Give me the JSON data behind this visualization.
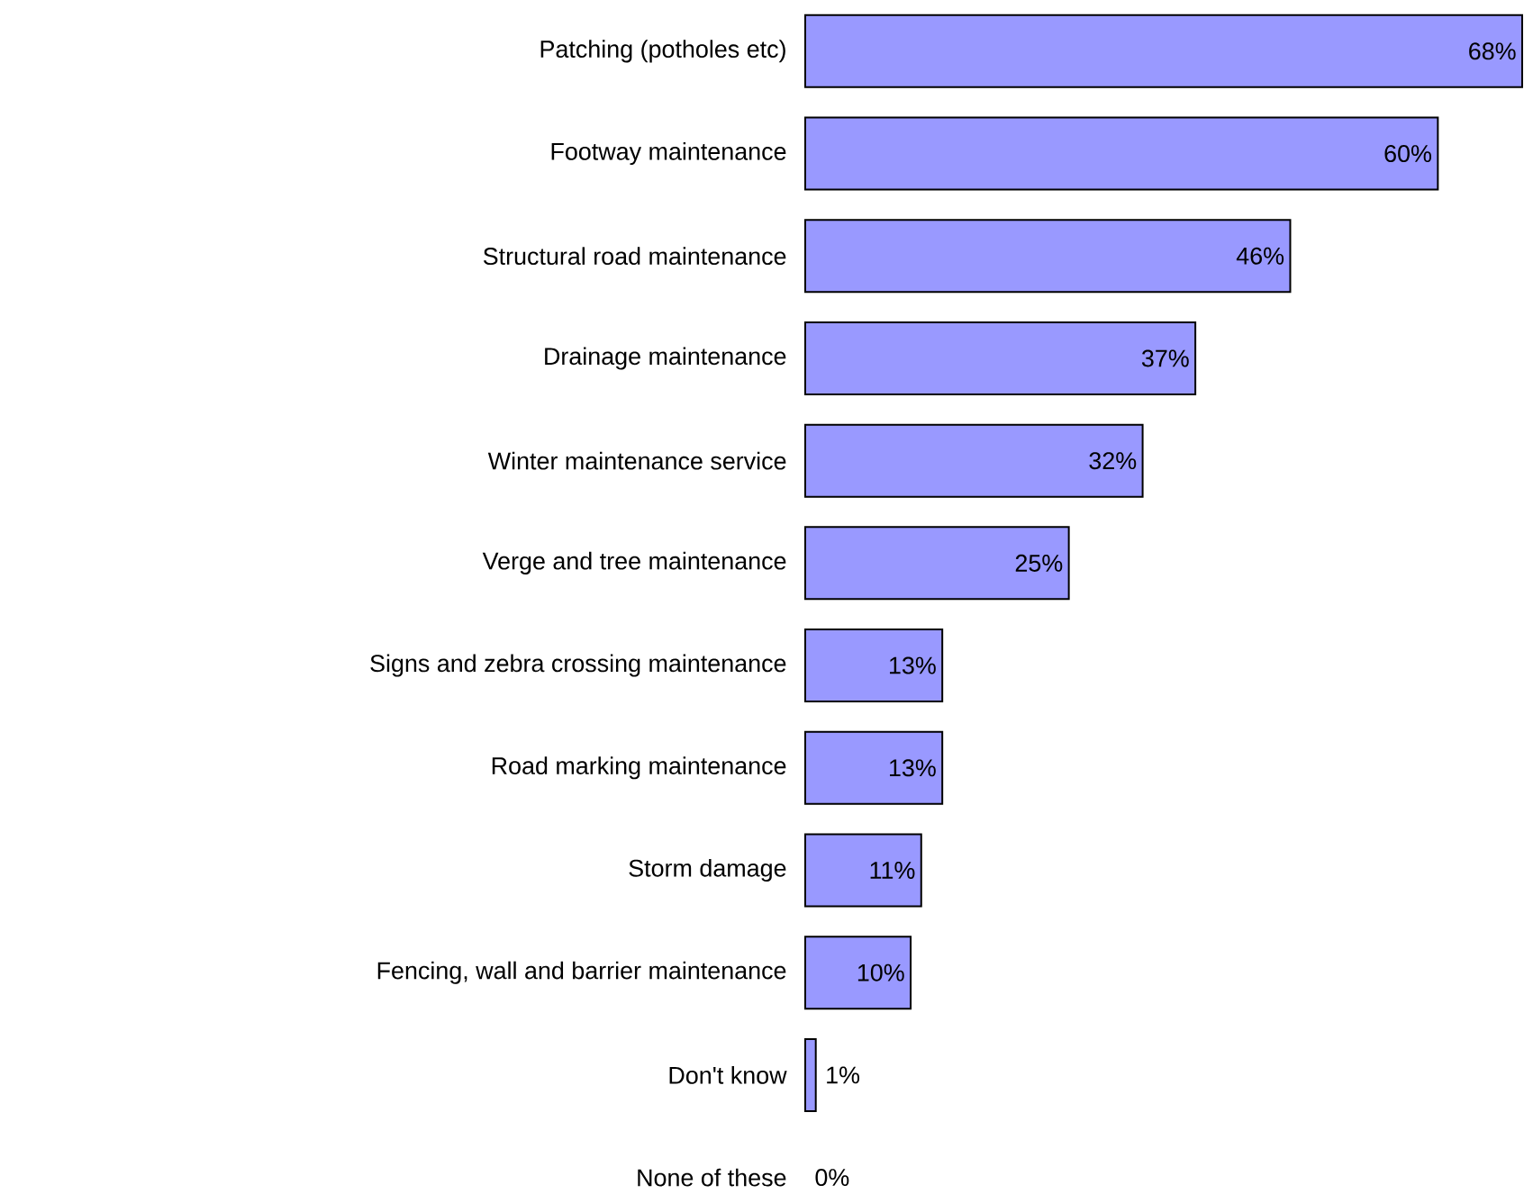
{
  "chart_data": {
    "type": "bar",
    "orientation": "horizontal",
    "color": "#9999ff",
    "categories": [
      "Patching (potholes etc)",
      "Footway maintenance",
      "Structural road maintenance",
      "Drainage maintenance",
      "Winter maintenance service",
      "Verge and tree maintenance",
      "Signs and zebra crossing maintenance",
      "Road marking maintenance",
      "Storm damage",
      "Fencing, wall and barrier maintenance",
      "Don't know",
      "None of these"
    ],
    "values": [
      68,
      60,
      46,
      37,
      32,
      25,
      13,
      13,
      11,
      10,
      1,
      0
    ],
    "value_labels": [
      "68%",
      "60%",
      "46%",
      "37%",
      "32%",
      "25%",
      "13%",
      "13%",
      "11%",
      "10%",
      "1%",
      "0%"
    ]
  }
}
